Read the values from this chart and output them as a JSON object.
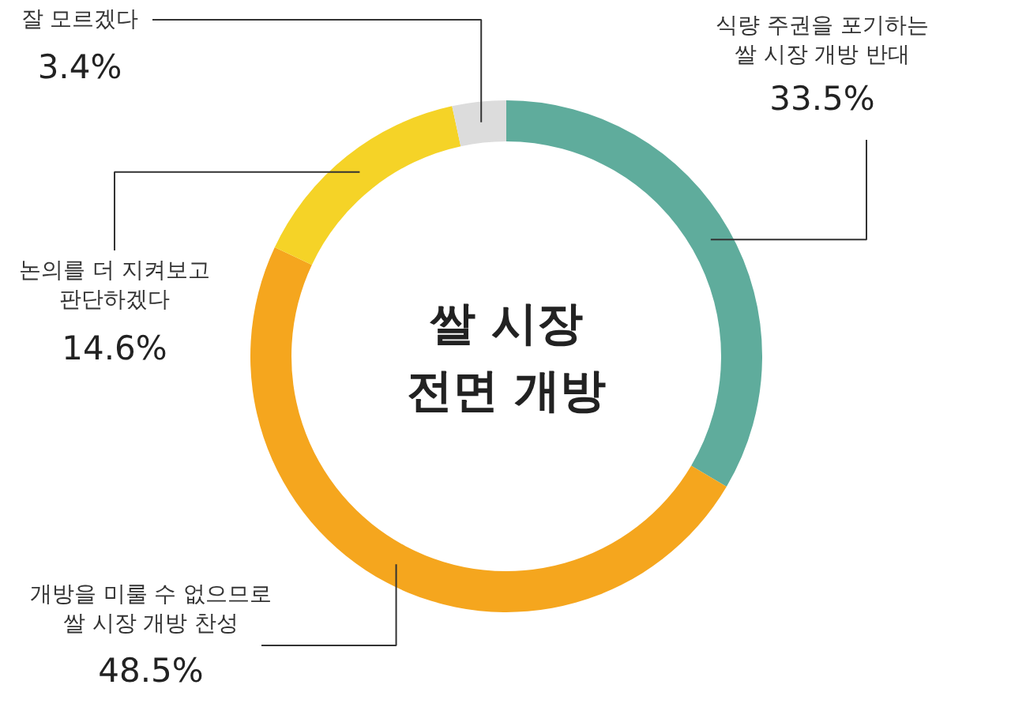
{
  "chart_data": {
    "type": "donut",
    "title": "쌀 시장\n전면 개방",
    "categories": [
      "식량 주권을 포기하는\n쌀 시장 개방 반대",
      "개방을 미룰 수 없으므로\n쌀 시장 개방 찬성",
      "논의를 더 지켜보고\n판단하겠다",
      "잘 모르겠다"
    ],
    "values": [
      33.5,
      48.5,
      14.6,
      3.4
    ],
    "colors": [
      "#5fac9c",
      "#f5a61e",
      "#f5d327",
      "#dcdcdc"
    ],
    "value_labels": [
      "33.5%",
      "48.5%",
      "14.6%",
      "3.4%"
    ]
  }
}
